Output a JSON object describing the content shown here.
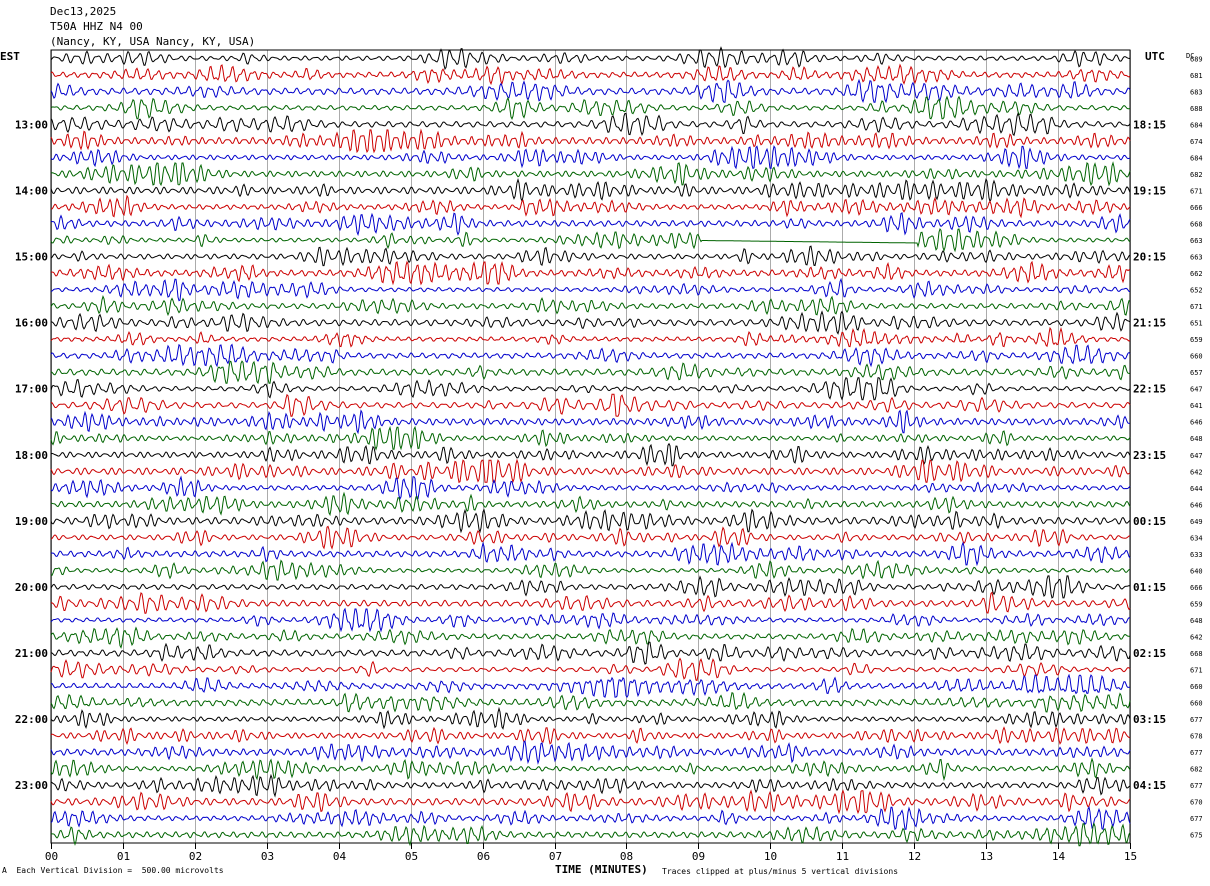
{
  "header": {
    "date": "Dec13,2025",
    "station": "T50A HHZ N4 00",
    "location": "(Nancy, KY, USA Nancy, KY, USA)"
  },
  "left_tz": "EST",
  "right_tz": "UTC",
  "dc_label": "DC",
  "footer": {
    "mark": "A",
    "scale_text": "Each Vertical Division =  500.00 microvolts",
    "xlabel": "TIME (MINUTES)",
    "clip_text": "Traces clipped at plus/minus 5 vertical divisions"
  },
  "colors": {
    "trace_cycle": [
      "#000000",
      "#cc0000",
      "#0000cc",
      "#006400"
    ],
    "grid": "#000000"
  },
  "chart_data": {
    "type": "line",
    "xlabel": "TIME (MINUTES)",
    "xlim": [
      0,
      15
    ],
    "x_ticks": [
      "00",
      "01",
      "02",
      "03",
      "04",
      "05",
      "06",
      "07",
      "08",
      "09",
      "10",
      "11",
      "12",
      "13",
      "14",
      "15"
    ],
    "left_hour_labels": [
      "13:00",
      "14:00",
      "15:00",
      "16:00",
      "17:00",
      "18:00",
      "19:00",
      "20:00",
      "21:00",
      "22:00",
      "23:00"
    ],
    "right_hour_labels": [
      "18:15",
      "19:15",
      "20:15",
      "21:15",
      "22:15",
      "23:15",
      "00:15",
      "01:15",
      "02:15",
      "03:15",
      "04:15"
    ],
    "trace_count": 48,
    "traces_per_hour": 4,
    "first_labeled_trace": 4,
    "dc_offsets": [
      689,
      681,
      683,
      688,
      684,
      674,
      684,
      682,
      671,
      666,
      668,
      663,
      663,
      662,
      652,
      671,
      651,
      659,
      660,
      657,
      647,
      641,
      646,
      648,
      647,
      642,
      644,
      646,
      649,
      634,
      633,
      640,
      666,
      659,
      648,
      642,
      668,
      671,
      660,
      660,
      677,
      678,
      677,
      682,
      677,
      670,
      677,
      675
    ],
    "gap": {
      "trace": 11,
      "x_start": 9.05,
      "x_end": 12.05
    }
  }
}
